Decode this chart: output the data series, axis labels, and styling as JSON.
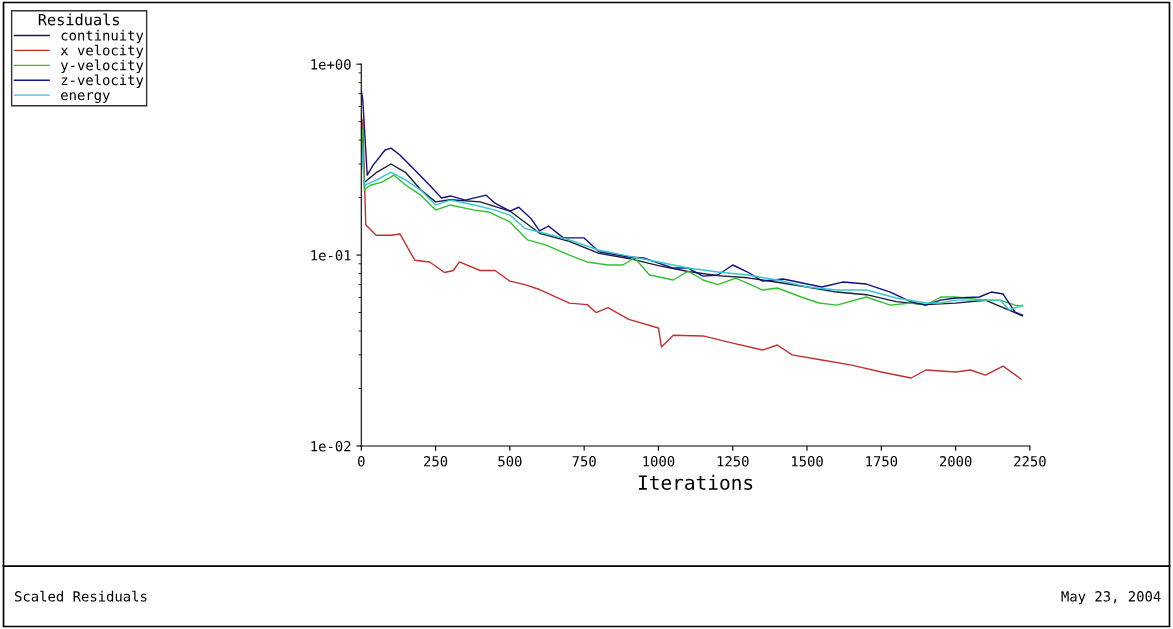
{
  "chart_data": {
    "type": "line",
    "xlabel": "Iterations",
    "legend_title": "Residuals",
    "legend": "top left",
    "grid": false,
    "log": "y",
    "xlim": [
      0,
      2250
    ],
    "xticks": [
      0,
      250,
      500,
      750,
      1000,
      1250,
      1500,
      1750,
      2000,
      2250
    ],
    "ylim": [
      0.01,
      1
    ],
    "yticks": [
      {
        "value": 1,
        "label": "1e+00"
      },
      {
        "value": 0.1,
        "label": "1e-01"
      },
      {
        "value": 0.01,
        "label": "1e-02"
      }
    ],
    "annotations": [
      "Scaled Residuals",
      "May 23, 2004"
    ],
    "series": [
      {
        "name": "continuity",
        "color": "#1a1a3a",
        "x": [
          0,
          10,
          50,
          100,
          150,
          200,
          250,
          300,
          400,
          500,
          600,
          700,
          800,
          900,
          1000,
          1100,
          1200,
          1300,
          1400,
          1500,
          1600,
          1700,
          1800,
          1900,
          2000,
          2100,
          2200,
          2225
        ],
        "values": [
          0.55,
          0.24,
          0.27,
          0.3,
          0.27,
          0.22,
          0.19,
          0.195,
          0.19,
          0.17,
          0.13,
          0.118,
          0.102,
          0.096,
          0.088,
          0.082,
          0.078,
          0.076,
          0.072,
          0.068,
          0.064,
          0.062,
          0.057,
          0.055,
          0.056,
          0.058,
          0.05,
          0.048
        ]
      },
      {
        "name": "x velocity",
        "color": "#c03030",
        "x": [
          5,
          15,
          50,
          100,
          130,
          180,
          230,
          280,
          310,
          330,
          400,
          450,
          500,
          550,
          600,
          700,
          760,
          790,
          830,
          900,
          1000,
          1010,
          1050,
          1150,
          1250,
          1350,
          1400,
          1450,
          1550,
          1650,
          1750,
          1850,
          1900,
          2000,
          2050,
          2100,
          2160,
          2220
        ],
        "values": [
          0.509,
          0.144,
          0.127,
          0.127,
          0.129,
          0.094,
          0.092,
          0.081,
          0.083,
          0.092,
          0.083,
          0.083,
          0.073,
          0.07,
          0.066,
          0.056,
          0.055,
          0.05,
          0.053,
          0.046,
          0.0415,
          0.033,
          0.038,
          0.0377,
          0.0346,
          0.0318,
          0.0338,
          0.03,
          0.0282,
          0.0265,
          0.0244,
          0.0227,
          0.025,
          0.0244,
          0.025,
          0.0235,
          0.0262,
          0.0224
        ]
      },
      {
        "name": "y-velocity",
        "color": "#30c030",
        "x": [
          4,
          10,
          30,
          70,
          110,
          150,
          200,
          250,
          300,
          380,
          430,
          500,
          560,
          620,
          700,
          760,
          830,
          880,
          920,
          970,
          1050,
          1100,
          1150,
          1200,
          1260,
          1320,
          1350,
          1400,
          1480,
          1540,
          1600,
          1700,
          1780,
          1850,
          1900,
          1950,
          2000,
          2100,
          2150,
          2200,
          2225
        ],
        "values": [
          0.451,
          0.219,
          0.232,
          0.241,
          0.262,
          0.232,
          0.206,
          0.172,
          0.183,
          0.172,
          0.168,
          0.149,
          0.12,
          0.113,
          0.1,
          0.092,
          0.0887,
          0.0887,
          0.0965,
          0.0786,
          0.074,
          0.0824,
          0.074,
          0.07,
          0.0758,
          0.0689,
          0.0656,
          0.0672,
          0.0603,
          0.0561,
          0.0547,
          0.0603,
          0.0547,
          0.0561,
          0.0547,
          0.0603,
          0.0603,
          0.0581,
          0.0581,
          0.0547,
          0.0541
        ]
      },
      {
        "name": "z-velocity",
        "color": "#101080",
        "x": [
          0,
          5,
          20,
          40,
          80,
          100,
          130,
          180,
          230,
          270,
          300,
          350,
          420,
          450,
          500,
          530,
          570,
          600,
          630,
          680,
          750,
          800,
          900,
          950,
          1050,
          1100,
          1150,
          1200,
          1250,
          1300,
          1350,
          1420,
          1500,
          1550,
          1620,
          1700,
          1780,
          1850,
          1900,
          1950,
          2000,
          2080,
          2120,
          2160,
          2200,
          2225
        ],
        "values": [
          0.731,
          0.649,
          0.262,
          0.296,
          0.355,
          0.363,
          0.334,
          0.279,
          0.232,
          0.199,
          0.204,
          0.194,
          0.206,
          0.187,
          0.17,
          0.178,
          0.156,
          0.134,
          0.142,
          0.123,
          0.123,
          0.104,
          0.0977,
          0.0965,
          0.0855,
          0.0855,
          0.0776,
          0.0786,
          0.0887,
          0.0815,
          0.0731,
          0.0749,
          0.0705,
          0.068,
          0.0722,
          0.0705,
          0.064,
          0.0568,
          0.0547,
          0.0581,
          0.0596,
          0.0603,
          0.064,
          0.0625,
          0.0503,
          0.0485
        ]
      },
      {
        "name": "energy",
        "color": "#30c8d0",
        "x": [
          0,
          10,
          50,
          100,
          150,
          200,
          250,
          300,
          380,
          450,
          500,
          550,
          600,
          700,
          800,
          900,
          1000,
          1100,
          1200,
          1300,
          1400,
          1500,
          1600,
          1700,
          1800,
          1900,
          1950,
          2000,
          2100,
          2150,
          2180,
          2225
        ],
        "values": [
          0.4,
          0.232,
          0.247,
          0.272,
          0.247,
          0.219,
          0.183,
          0.194,
          0.183,
          0.172,
          0.162,
          0.138,
          0.132,
          0.12,
          0.106,
          0.0988,
          0.092,
          0.0855,
          0.0815,
          0.0786,
          0.074,
          0.068,
          0.0656,
          0.0656,
          0.0596,
          0.0561,
          0.0561,
          0.0581,
          0.0581,
          0.0581,
          0.0515,
          0.0547
        ]
      }
    ]
  }
}
